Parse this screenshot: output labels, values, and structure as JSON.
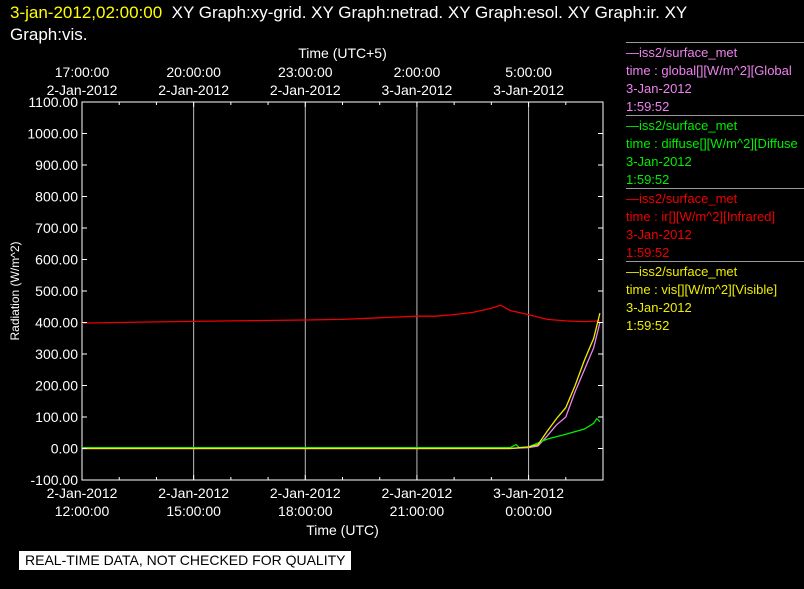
{
  "header": {
    "timestamp": "3-jan-2012,02:00:00",
    "graphs_line1": "XY Graph:xy-grid.  XY Graph:netrad.  XY Graph:esol.  XY Graph:ir.  XY",
    "graphs_line2": "Graph:vis."
  },
  "footer": {
    "note": "REAL-TIME DATA, NOT CHECKED FOR QUALITY"
  },
  "legend": [
    {
      "line1": "—iss2/surface_met",
      "line2": "time : global[][W/m^2][Global",
      "line3": "3-Jan-2012",
      "line4": "1:59:52",
      "color": "#ee82ee"
    },
    {
      "line1": "—iss2/surface_met",
      "line2": "time : diffuse[][W/m^2][Diffuse",
      "line3": "3-Jan-2012",
      "line4": "1:59:52",
      "color": "#00ee00"
    },
    {
      "line1": "—iss2/surface_met",
      "line2": "time : ir[][W/m^2][Infrared]",
      "line3": "3-Jan-2012",
      "line4": "1:59:52",
      "color": "#ee0000"
    },
    {
      "line1": "—iss2/surface_met",
      "line2": "time : vis[][W/m^2][Visible]",
      "line3": "3-Jan-2012",
      "line4": "1:59:52",
      "color": "#eeee00"
    }
  ],
  "chart_data": {
    "type": "line",
    "xlabel": "Time (UTC)",
    "x2label": "Time (UTC+5)",
    "ylabel": "Radiation (W/m^2)",
    "ylim": [
      -100,
      1100
    ],
    "xlim": [
      "2012-01-02T12:00",
      "2012-01-03T02:00"
    ],
    "yticks": [
      "1100.00",
      "1000.00",
      "900.00",
      "800.00",
      "700.00",
      "600.00",
      "500.00",
      "400.00",
      "300.00",
      "200.00",
      "100.00",
      "0.00",
      "-100.00"
    ],
    "xticks_bottom": [
      {
        "date": "2-Jan-2012",
        "time": "12:00:00"
      },
      {
        "date": "2-Jan-2012",
        "time": "15:00:00"
      },
      {
        "date": "2-Jan-2012",
        "time": "18:00:00"
      },
      {
        "date": "2-Jan-2012",
        "time": "21:00:00"
      },
      {
        "date": "3-Jan-2012",
        "time": "0:00:00"
      }
    ],
    "xticks_top": [
      {
        "time": "17:00:00",
        "date": "2-Jan-2012"
      },
      {
        "time": "20:00:00",
        "date": "2-Jan-2012"
      },
      {
        "time": "23:00:00",
        "date": "2-Jan-2012"
      },
      {
        "time": "2:00:00",
        "date": "3-Jan-2012"
      },
      {
        "time": "5:00:00",
        "date": "3-Jan-2012"
      }
    ],
    "grid": true,
    "series": [
      {
        "name": "global",
        "color": "#ee82ee",
        "x": [
          "2012-01-02T12:00",
          "2012-01-02T23:30",
          "2012-01-03T00:00",
          "2012-01-03T00:15",
          "2012-01-03T00:30",
          "2012-01-03T00:45",
          "2012-01-03T01:00",
          "2012-01-03T01:15",
          "2012-01-03T01:30",
          "2012-01-03T01:45",
          "2012-01-03T01:55"
        ],
        "y": [
          0,
          0,
          3,
          8,
          40,
          75,
          100,
          180,
          250,
          320,
          400
        ]
      },
      {
        "name": "diffuse",
        "color": "#00ee00",
        "x": [
          "2012-01-02T12:00",
          "2012-01-02T23:30",
          "2012-01-02T23:40",
          "2012-01-02T23:45",
          "2012-01-03T00:00",
          "2012-01-03T00:30",
          "2012-01-03T01:00",
          "2012-01-03T01:30",
          "2012-01-03T01:45",
          "2012-01-03T01:50",
          "2012-01-03T01:55"
        ],
        "y": [
          3,
          3,
          12,
          3,
          5,
          30,
          45,
          62,
          80,
          95,
          85
        ]
      },
      {
        "name": "ir",
        "color": "#ee0000",
        "x": [
          "2012-01-02T12:00",
          "2012-01-02T14:00",
          "2012-01-02T16:00",
          "2012-01-02T18:00",
          "2012-01-02T19:00",
          "2012-01-02T20:00",
          "2012-01-02T21:00",
          "2012-01-02T21:30",
          "2012-01-02T22:00",
          "2012-01-02T22:30",
          "2012-01-02T23:00",
          "2012-01-02T23:15",
          "2012-01-02T23:30",
          "2012-01-03T00:00",
          "2012-01-03T00:30",
          "2012-01-03T01:00",
          "2012-01-03T01:30",
          "2012-01-03T01:55"
        ],
        "y": [
          398,
          402,
          405,
          408,
          410,
          415,
          420,
          420,
          425,
          432,
          445,
          455,
          438,
          425,
          410,
          405,
          403,
          405
        ]
      },
      {
        "name": "vis",
        "color": "#eeee00",
        "x": [
          "2012-01-02T12:00",
          "2012-01-02T23:30",
          "2012-01-03T00:00",
          "2012-01-03T00:15",
          "2012-01-03T00:30",
          "2012-01-03T00:45",
          "2012-01-03T01:00",
          "2012-01-03T01:15",
          "2012-01-03T01:30",
          "2012-01-03T01:45",
          "2012-01-03T01:55"
        ],
        "y": [
          0,
          0,
          5,
          12,
          55,
          95,
          130,
          200,
          280,
          350,
          430
        ]
      }
    ]
  }
}
